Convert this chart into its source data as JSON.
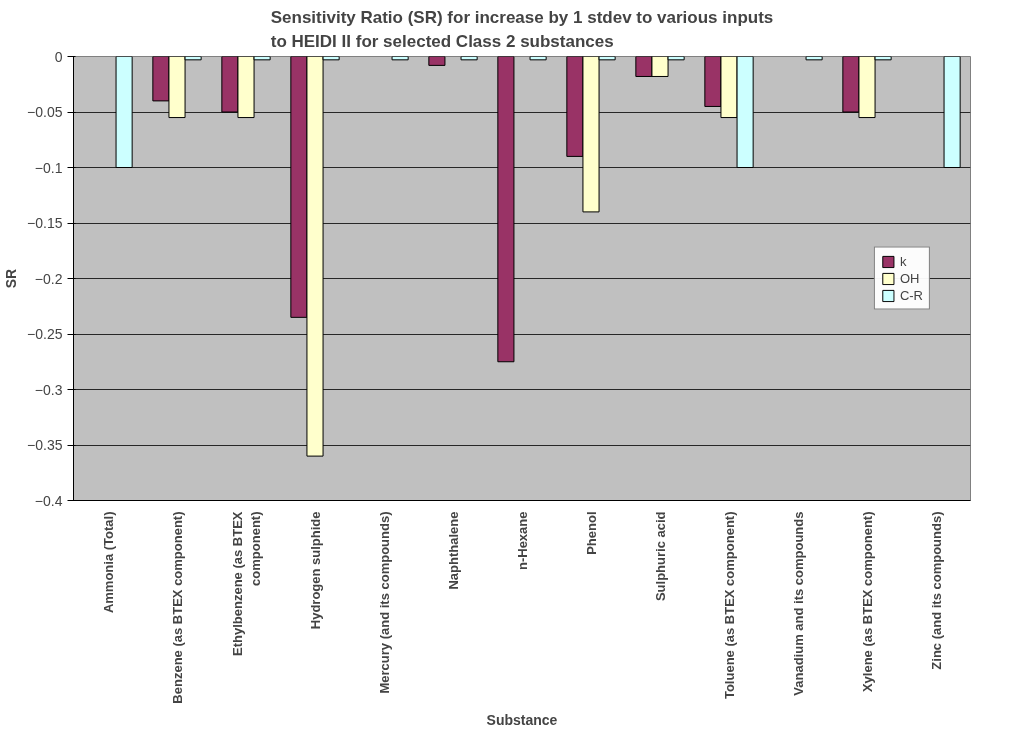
{
  "chart_data": {
    "type": "bar",
    "title": "Sensitivity Ratio (SR) for increase by 1 stdev to various inputs\nto HEIDI II for selected Class 2 substances",
    "xlabel": "Substance",
    "ylabel": "SR",
    "categories": [
      "Ammonia (Total)",
      "Benzene (as BTEX component)",
      "Ethylbenzene (as BTEX\ncomponent)",
      "Hydrogen sulphide",
      "Mercury (and its compounds)",
      "Naphthalene",
      "n-Hexane",
      "Phenol",
      "Sulphuric acid",
      "Toluene (as BTEX component)",
      "Vanadium and its compounds",
      "Xylene (as BTEX component)",
      "Zinc (and its compounds)"
    ],
    "series": [
      {
        "name": "k",
        "color": "#993366",
        "values": [
          null,
          -0.04,
          -0.05,
          -0.235,
          null,
          -0.008,
          -0.275,
          -0.09,
          -0.018,
          -0.045,
          null,
          -0.05,
          null
        ]
      },
      {
        "name": "OH",
        "color": "#ffffcc",
        "values": [
          null,
          -0.055,
          -0.055,
          -0.36,
          null,
          null,
          null,
          -0.14,
          -0.018,
          -0.055,
          null,
          -0.055,
          null
        ]
      },
      {
        "name": "C-R",
        "color": "#ccffff",
        "values": [
          -0.1,
          -0.003,
          -0.003,
          -0.003,
          -0.003,
          -0.003,
          -0.003,
          -0.003,
          -0.003,
          -0.1,
          -0.003,
          -0.003,
          -0.1
        ]
      }
    ],
    "ylim": [
      -0.4,
      0
    ],
    "yticks": [
      -0.4,
      -0.35,
      -0.3,
      -0.25,
      -0.2,
      -0.15,
      -0.1,
      -0.05,
      0
    ],
    "grid": "y",
    "legend": "right"
  }
}
